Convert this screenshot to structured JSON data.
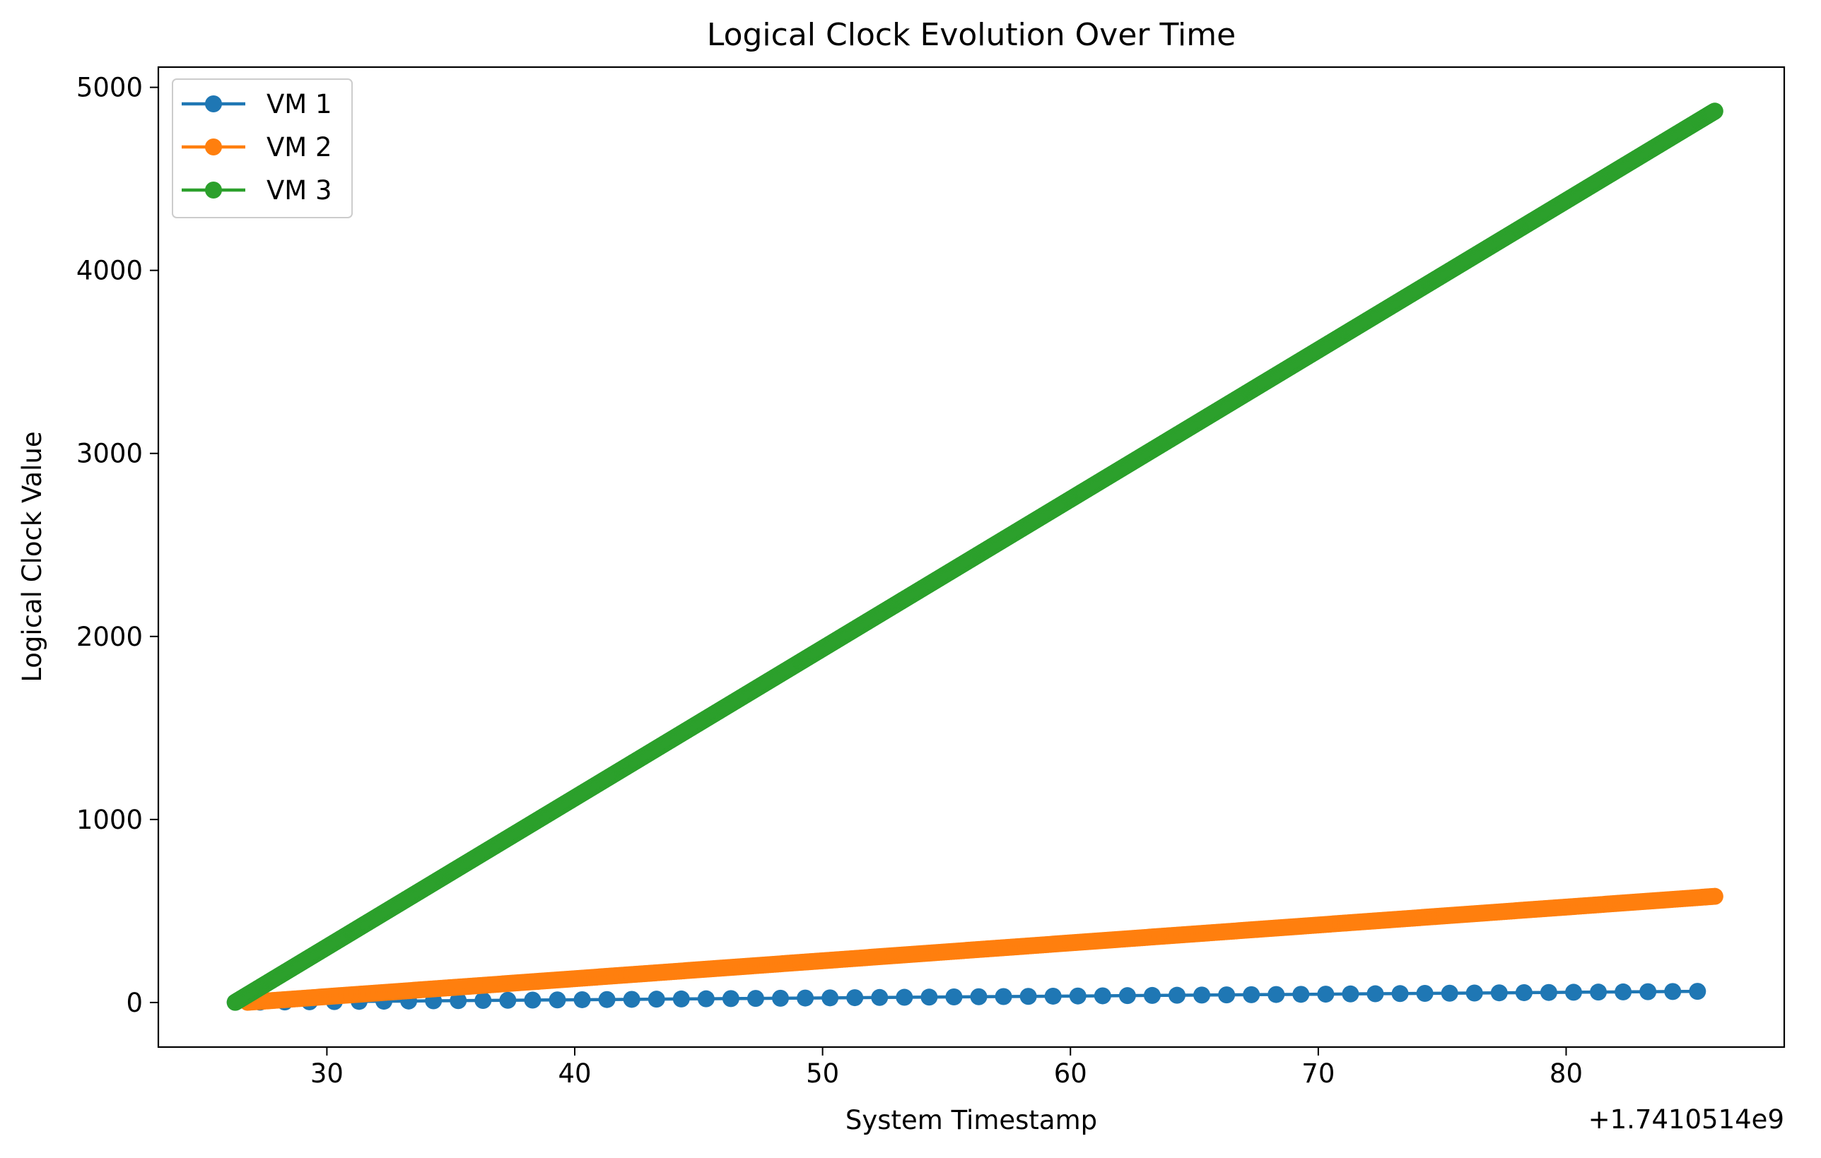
{
  "chart_data": {
    "type": "line",
    "title": "Logical Clock Evolution Over Time",
    "xlabel": "System Timestamp",
    "ylabel": "Logical Clock Value",
    "x_offset_label": "+1.7410514e9",
    "xlim": [
      23.2,
      88.8
    ],
    "ylim": [
      -243.5,
      5110.5
    ],
    "x_ticks": [
      30,
      40,
      50,
      60,
      70,
      80
    ],
    "y_ticks": [
      0,
      1000,
      2000,
      3000,
      4000,
      5000
    ],
    "grid": false,
    "legend_position": "top-left",
    "series": [
      {
        "name": "VM 1",
        "color": "#1f77b4",
        "x_start": 26.3,
        "x_end": 85.5,
        "x_step": 1.0,
        "y_start": 1,
        "y_end": 61
      },
      {
        "name": "VM 2",
        "color": "#ff7f0e",
        "x_start": 26.8,
        "x_end": 86.0,
        "x_step": 0.1,
        "y_start": 1,
        "y_end": 580
      },
      {
        "name": "VM 3",
        "color": "#2ca02c",
        "x_start": 26.3,
        "x_end": 86.0,
        "x_step": 0.0125,
        "y_start": 1,
        "y_end": 4870
      }
    ]
  }
}
